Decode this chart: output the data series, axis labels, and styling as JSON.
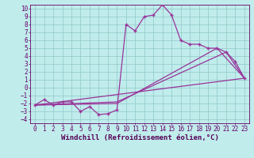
{
  "xlabel": "Windchill (Refroidissement éolien,°C)",
  "bg_color": "#c0ecec",
  "grid_color": "#90c8c8",
  "line_color": "#993399",
  "xlim": [
    -0.5,
    23.5
  ],
  "ylim": [
    -4.5,
    10.5
  ],
  "xticks": [
    0,
    1,
    2,
    3,
    4,
    5,
    6,
    7,
    8,
    9,
    10,
    11,
    12,
    13,
    14,
    15,
    16,
    17,
    18,
    19,
    20,
    21,
    22,
    23
  ],
  "yticks": [
    -4,
    -3,
    -2,
    -1,
    0,
    1,
    2,
    3,
    4,
    5,
    6,
    7,
    8,
    9,
    10
  ],
  "line1_x": [
    0,
    1,
    2,
    3,
    4,
    5,
    6,
    7,
    8,
    9,
    10,
    11,
    12,
    13,
    14,
    15,
    16,
    17,
    18,
    19,
    20,
    21,
    22,
    23
  ],
  "line1_y": [
    -2.2,
    -1.5,
    -2.2,
    -1.8,
    -1.8,
    -3.0,
    -2.4,
    -3.4,
    -3.3,
    -2.8,
    8.0,
    7.2,
    9.0,
    9.2,
    10.5,
    9.2,
    6.0,
    5.5,
    5.5,
    5.0,
    5.0,
    4.5,
    3.3,
    1.2
  ],
  "line2_x": [
    0,
    23
  ],
  "line2_y": [
    -2.2,
    1.2
  ],
  "line3_x": [
    0,
    9,
    20,
    23
  ],
  "line3_y": [
    -2.2,
    -2.0,
    5.0,
    1.2
  ],
  "line4_x": [
    0,
    9,
    21,
    23
  ],
  "line4_y": [
    -2.2,
    -1.8,
    4.5,
    1.2
  ],
  "markersize": 2.5,
  "linewidth": 0.9,
  "xlabel_fontsize": 6.5,
  "tick_fontsize": 5.5
}
